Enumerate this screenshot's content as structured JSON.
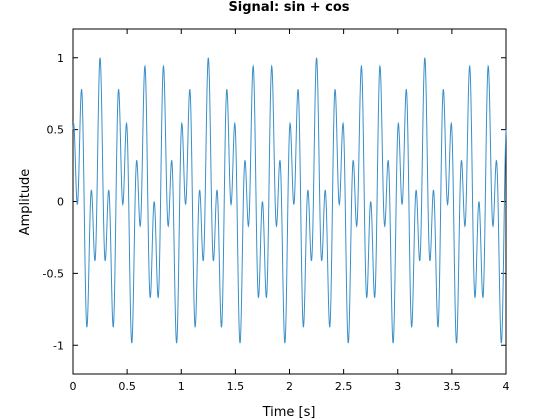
{
  "chart_data": {
    "type": "line",
    "title": "Signal: sin + cos",
    "xlabel": "Time [s]",
    "ylabel": "Amplitude",
    "xlim": [
      0,
      4
    ],
    "ylim": [
      -1.2,
      1.2
    ],
    "x_ticks": [
      0,
      0.5,
      1,
      1.5,
      2,
      2.5,
      3,
      3.5,
      4
    ],
    "x_tick_labels": [
      "0",
      "0.5",
      "1",
      "1.5",
      "2",
      "2.5",
      "3",
      "3.5",
      "4"
    ],
    "y_ticks": [
      -1,
      -0.5,
      0,
      0.5,
      1
    ],
    "y_tick_labels": [
      "-1",
      "-0.5",
      "0",
      "0.5",
      "1"
    ],
    "grid": false,
    "legend": "none",
    "series": [
      {
        "formula": "0.5*sin(2*pi*5*t) + 0.5*cos(2*pi*12*t)",
        "x_start": 0,
        "x_end": 4,
        "samples": 1600,
        "color": "#3a8fc8"
      }
    ]
  }
}
